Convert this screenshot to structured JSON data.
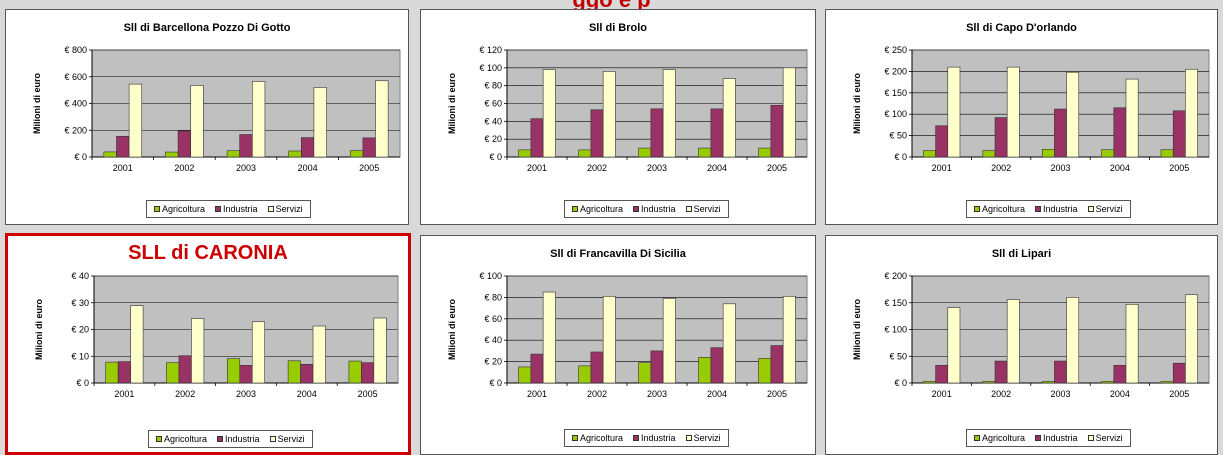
{
  "page": {
    "title": "ggo e p"
  },
  "legend_labels": [
    "Agricoltura",
    "Industria",
    "Servizi"
  ],
  "colors": {
    "agricoltura": "#99cc00",
    "industria": "#993366",
    "servizi": "#ffffcc",
    "plot_bg": "#c0c0c0",
    "highlight": "#cc0000"
  },
  "chart_data": [
    {
      "type": "bar",
      "title": "Sll di Barcellona Pozzo Di Gotto",
      "ylabel": "Milioni di euro",
      "categories": [
        "2001",
        "2002",
        "2003",
        "2004",
        "2005"
      ],
      "ylim": [
        0,
        800
      ],
      "yticks": [
        0,
        200,
        400,
        600,
        800
      ],
      "ytick_labels": [
        "€ 0",
        "€ 200",
        "€ 400",
        "€ 600",
        "€ 800"
      ],
      "series": [
        {
          "name": "Agricoltura",
          "values": [
            38,
            37,
            47,
            45,
            48
          ]
        },
        {
          "name": "Industria",
          "values": [
            155,
            195,
            168,
            145,
            143
          ]
        },
        {
          "name": "Servizi",
          "values": [
            545,
            535,
            565,
            520,
            570
          ]
        }
      ]
    },
    {
      "type": "bar",
      "title": "Sll di Brolo",
      "ylabel": "Milioni di euro",
      "categories": [
        "2001",
        "2002",
        "2003",
        "2004",
        "2005"
      ],
      "ylim": [
        0,
        120
      ],
      "yticks": [
        0,
        20,
        40,
        60,
        80,
        100,
        120
      ],
      "ytick_labels": [
        "€ 0",
        "€ 20",
        "€ 40",
        "€ 60",
        "€ 80",
        "€ 100",
        "€ 120"
      ],
      "series": [
        {
          "name": "Agricoltura",
          "values": [
            8,
            8,
            10,
            10,
            10
          ]
        },
        {
          "name": "Industria",
          "values": [
            43,
            53,
            54,
            54,
            58
          ]
        },
        {
          "name": "Servizi",
          "values": [
            98,
            96,
            98,
            88,
            100
          ]
        }
      ]
    },
    {
      "type": "bar",
      "title": "Sll di Capo D'orlando",
      "ylabel": "Milioni di euro",
      "categories": [
        "2001",
        "2002",
        "2003",
        "2004",
        "2005"
      ],
      "ylim": [
        0,
        250
      ],
      "yticks": [
        0,
        50,
        100,
        150,
        200,
        250
      ],
      "ytick_labels": [
        "€ 0",
        "€ 50",
        "€ 100",
        "€ 150",
        "€ 200",
        "€ 250"
      ],
      "series": [
        {
          "name": "Agricoltura",
          "values": [
            15,
            15,
            18,
            17,
            17
          ]
        },
        {
          "name": "Industria",
          "values": [
            73,
            92,
            112,
            115,
            108
          ]
        },
        {
          "name": "Servizi",
          "values": [
            210,
            210,
            198,
            182,
            205
          ]
        }
      ]
    },
    {
      "type": "bar",
      "title": "SLL di CARONIA",
      "highlight": true,
      "ylabel": "Milioni di euro",
      "categories": [
        "2001",
        "2002",
        "2003",
        "2004",
        "2005"
      ],
      "ylim": [
        0,
        40
      ],
      "yticks": [
        0,
        10,
        20,
        30,
        40
      ],
      "ytick_labels": [
        "€ 0",
        "€ 10",
        "€ 20",
        "€ 30",
        "€ 40"
      ],
      "series": [
        {
          "name": "Agricoltura",
          "values": [
            7.8,
            7.6,
            9.1,
            8.3,
            8.2
          ]
        },
        {
          "name": "Industria",
          "values": [
            8.0,
            10.2,
            6.6,
            7.0,
            7.6
          ]
        },
        {
          "name": "Servizi",
          "values": [
            28.9,
            24.1,
            22.9,
            21.3,
            24.3
          ]
        }
      ]
    },
    {
      "type": "bar",
      "title": "Sll di Francavilla Di Sicilia",
      "ylabel": "Milioni di euro",
      "categories": [
        "2001",
        "2002",
        "2003",
        "2004",
        "2005"
      ],
      "ylim": [
        0,
        100
      ],
      "yticks": [
        0,
        20,
        40,
        60,
        80,
        100
      ],
      "ytick_labels": [
        "€ 0",
        "€ 20",
        "€ 40",
        "€ 60",
        "€ 80",
        "€ 100"
      ],
      "series": [
        {
          "name": "Agricoltura",
          "values": [
            15,
            16,
            19,
            24,
            23
          ]
        },
        {
          "name": "Industria",
          "values": [
            27,
            29,
            30,
            33,
            35
          ]
        },
        {
          "name": "Servizi",
          "values": [
            85,
            81,
            79,
            74,
            81
          ]
        }
      ]
    },
    {
      "type": "bar",
      "title": "Sll di Lipari",
      "ylabel": "Milioni di euro",
      "categories": [
        "2001",
        "2002",
        "2003",
        "2004",
        "2005"
      ],
      "ylim": [
        0,
        200
      ],
      "yticks": [
        0,
        50,
        100,
        150,
        200
      ],
      "ytick_labels": [
        "€ 0",
        "€ 50",
        "€ 100",
        "€ 150",
        "€ 200"
      ],
      "series": [
        {
          "name": "Agricoltura",
          "values": [
            3,
            3,
            3,
            3,
            3
          ]
        },
        {
          "name": "Industria",
          "values": [
            33,
            41,
            41,
            33,
            37
          ]
        },
        {
          "name": "Servizi",
          "values": [
            141,
            156,
            160,
            147,
            165
          ]
        }
      ]
    }
  ]
}
